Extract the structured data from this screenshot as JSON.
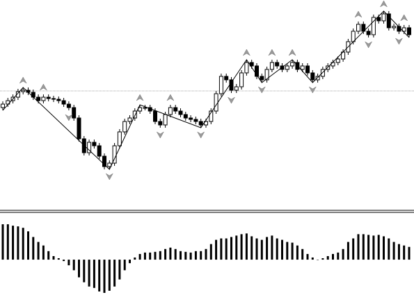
{
  "chart_data": [
    {
      "type": "candlestick",
      "open": [
        145,
        150,
        155,
        160,
        168,
        170,
        167,
        160,
        155,
        160,
        158,
        157,
        155,
        150,
        145,
        130,
        100,
        80,
        95,
        90,
        75,
        60,
        65,
        90,
        110,
        125,
        130,
        140,
        145,
        145,
        140,
        125,
        120,
        135,
        145,
        140,
        135,
        130,
        128,
        125,
        120,
        125,
        140,
        165,
        190,
        185,
        170,
        175,
        195,
        210,
        205,
        190,
        185,
        200,
        210,
        205,
        200,
        205,
        210,
        200,
        205,
        195,
        185,
        190,
        200,
        205,
        210,
        215,
        225,
        240,
        255,
        265,
        255,
        250,
        275,
        270,
        280,
        260,
        262,
        255,
        260
      ],
      "high": [
        154,
        159,
        164,
        172,
        174,
        174,
        171,
        164,
        164,
        164,
        162,
        161,
        159,
        154,
        149,
        134,
        104,
        99,
        99,
        94,
        79,
        69,
        94,
        114,
        129,
        134,
        144,
        149,
        149,
        149,
        144,
        129,
        139,
        149,
        149,
        144,
        139,
        134,
        132,
        129,
        129,
        144,
        169,
        194,
        194,
        189,
        179,
        199,
        214,
        214,
        209,
        194,
        204,
        214,
        214,
        209,
        209,
        214,
        214,
        209,
        209,
        199,
        194,
        204,
        209,
        214,
        219,
        229,
        244,
        259,
        269,
        269,
        259,
        279,
        279,
        284,
        284,
        266,
        266,
        264,
        264
      ],
      "low": [
        141,
        146,
        151,
        156,
        164,
        163,
        156,
        151,
        151,
        154,
        153,
        151,
        146,
        141,
        126,
        96,
        76,
        76,
        86,
        71,
        56,
        56,
        61,
        86,
        106,
        121,
        126,
        136,
        141,
        136,
        121,
        116,
        116,
        131,
        136,
        131,
        126,
        124,
        121,
        116,
        116,
        121,
        136,
        161,
        181,
        166,
        166,
        171,
        191,
        201,
        186,
        181,
        181,
        196,
        201,
        196,
        196,
        201,
        196,
        196,
        191,
        181,
        181,
        186,
        196,
        201,
        206,
        211,
        221,
        236,
        251,
        251,
        246,
        246,
        266,
        266,
        256,
        256,
        251,
        251,
        246
      ],
      "close": [
        150,
        155,
        160,
        168,
        170,
        167,
        160,
        155,
        160,
        158,
        157,
        155,
        150,
        145,
        130,
        100,
        80,
        95,
        90,
        75,
        60,
        65,
        90,
        110,
        125,
        130,
        140,
        145,
        145,
        140,
        125,
        120,
        135,
        145,
        140,
        135,
        130,
        128,
        125,
        120,
        125,
        140,
        165,
        190,
        185,
        170,
        175,
        195,
        210,
        205,
        190,
        185,
        200,
        210,
        205,
        200,
        205,
        210,
        200,
        205,
        195,
        185,
        190,
        200,
        205,
        210,
        215,
        225,
        240,
        255,
        265,
        255,
        250,
        275,
        270,
        280,
        260,
        262,
        255,
        260,
        250
      ],
      "up_color": "#ffffff",
      "down_color": "#000000",
      "ylim": [
        0,
        300
      ],
      "reference_line": 169,
      "overlays": [
        {
          "type": "zigzag",
          "color": "#000000",
          "x": [
            0,
            4,
            21,
            27,
            39,
            48,
            51,
            57,
            61,
            75,
            80
          ],
          "values": [
            141,
            174,
            56,
            149,
            116,
            214,
            181,
            214,
            181,
            284,
            246
          ]
        },
        {
          "type": "fractal_up",
          "color": "#9a9a9a",
          "x": [
            4,
            8,
            27,
            33,
            48,
            53,
            57,
            70,
            75,
            79
          ],
          "values": [
            174,
            164,
            149,
            149,
            214,
            214,
            214,
            269,
            284,
            264
          ]
        },
        {
          "type": "fractal_down",
          "color": "#9a9a9a",
          "x": [
            13,
            21,
            31,
            39,
            45,
            51,
            61,
            72,
            78
          ],
          "values": [
            141,
            56,
            116,
            116,
            166,
            181,
            181,
            246,
            251
          ]
        }
      ]
    },
    {
      "type": "bar",
      "color": "#000000",
      "ylim": [
        -50,
        55
      ],
      "values": [
        50,
        50,
        48,
        47,
        45,
        40,
        32,
        25,
        20,
        12,
        5,
        2,
        -2,
        -8,
        -15,
        -25,
        -32,
        -38,
        -40,
        -45,
        -47,
        -44,
        -38,
        -28,
        -15,
        -5,
        3,
        8,
        10,
        10,
        11,
        12,
        15,
        17,
        15,
        12,
        11,
        10,
        12,
        12,
        15,
        22,
        28,
        30,
        30,
        32,
        34,
        36,
        37,
        33,
        30,
        28,
        32,
        34,
        30,
        28,
        25,
        24,
        20,
        15,
        8,
        3,
        0,
        2,
        5,
        8,
        10,
        15,
        25,
        30,
        36,
        36,
        35,
        34,
        35,
        33,
        30,
        25,
        22,
        20,
        18
      ]
    }
  ]
}
